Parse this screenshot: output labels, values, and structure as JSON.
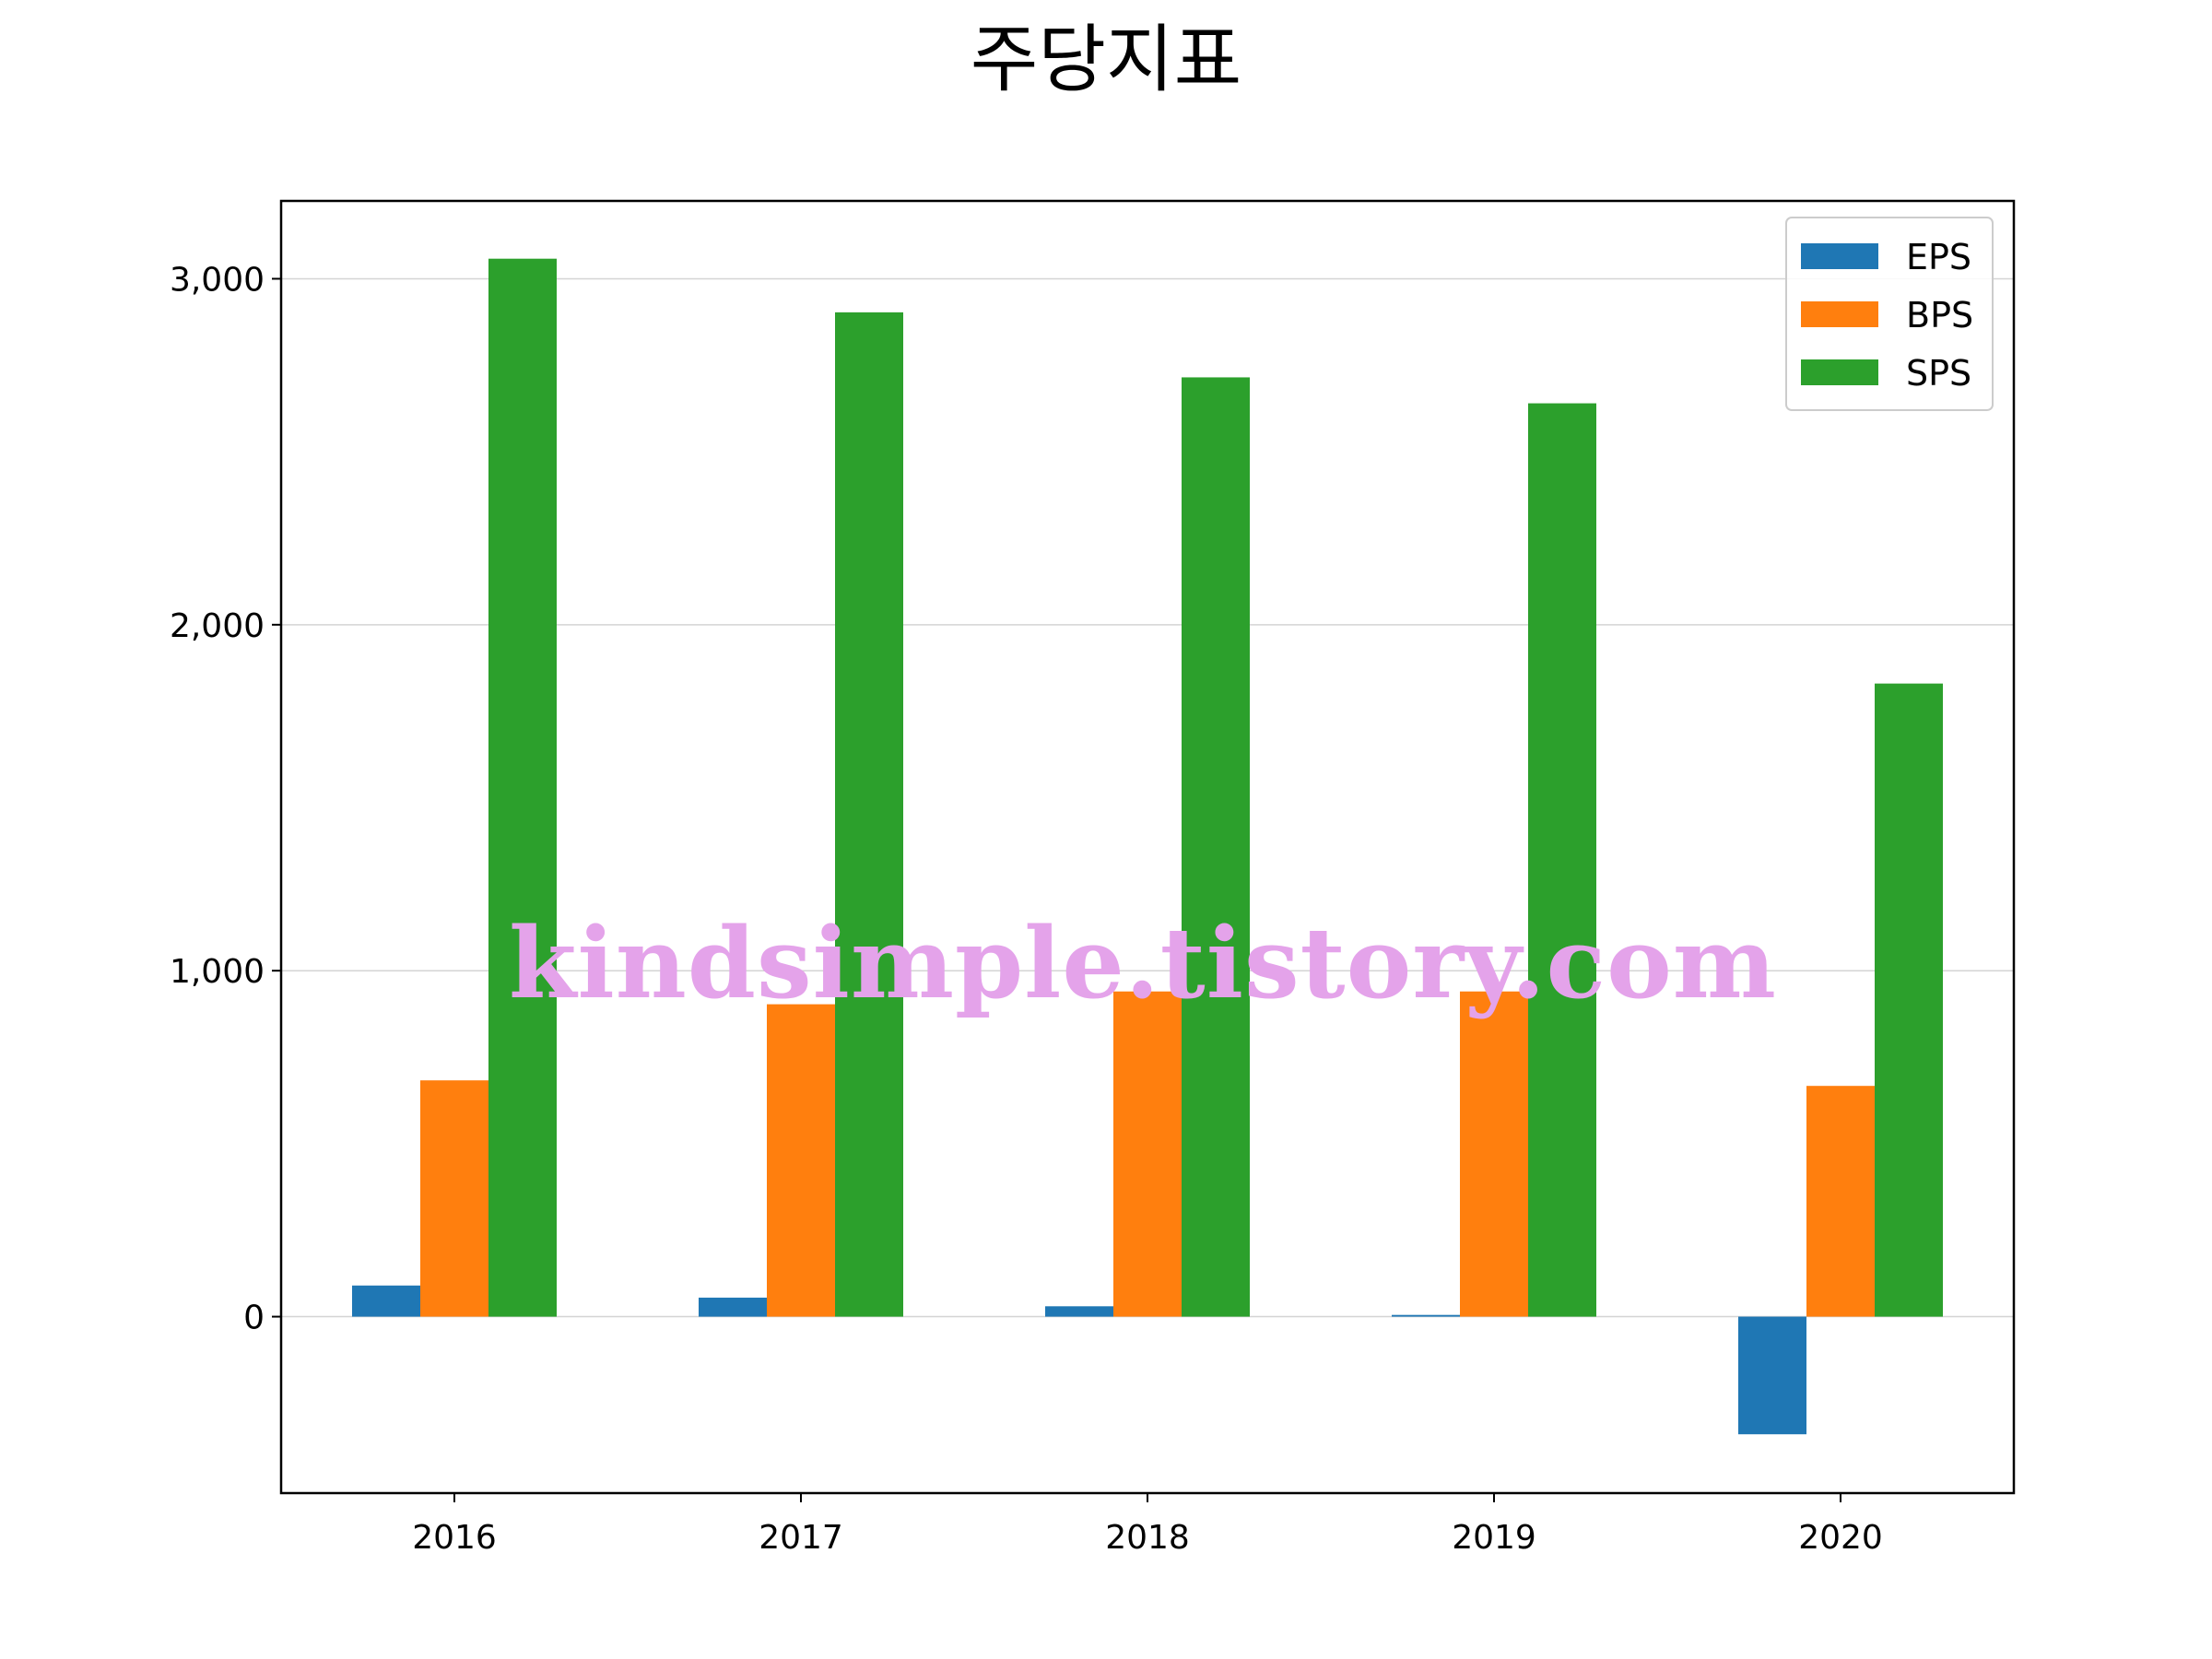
{
  "chart_data": {
    "type": "bar",
    "title": "주당지표",
    "xlabel": "",
    "ylabel": "",
    "categories": [
      "2016",
      "2017",
      "2018",
      "2019",
      "2020"
    ],
    "series": [
      {
        "name": "EPS",
        "color": "#1f77b4",
        "values": [
          90,
          55,
          30,
          5,
          -340
        ]
      },
      {
        "name": "BPS",
        "color": "#ff7f0e",
        "values": [
          683,
          903,
          940,
          940,
          667
        ]
      },
      {
        "name": "SPS",
        "color": "#2ca02c",
        "values": [
          3058,
          2903,
          2715,
          2640,
          1830
        ]
      }
    ],
    "ylim": [
      -510,
      3225
    ],
    "yticks": [
      0,
      1000,
      2000,
      3000
    ],
    "ytick_labels": [
      "0",
      "1,000",
      "2,000",
      "3,000"
    ],
    "grid": "horizontal",
    "legend_position": "top-right",
    "watermark": "kindsimple.tistory.com"
  }
}
